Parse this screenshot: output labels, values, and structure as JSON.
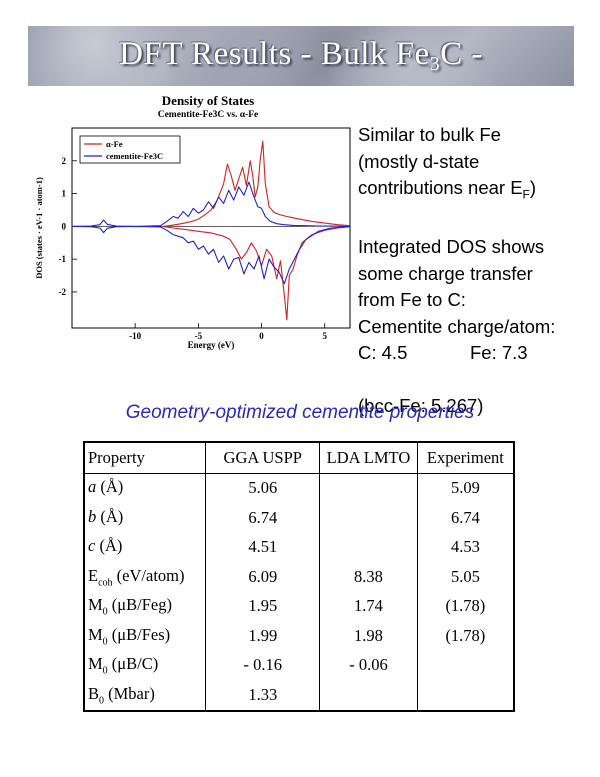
{
  "header": {
    "title_main": "DFT Results - Bulk Fe",
    "title_sub": "3",
    "title_tail": "C -"
  },
  "chart_data": {
    "type": "line",
    "title": "Density of States",
    "subtitle": "Cementite-Fe3C vs. α-Fe",
    "xlabel": "Energy (eV)",
    "ylabel": "DOS (states · eV-1 · atom-1)",
    "xlim": [
      -15,
      7
    ],
    "ylim": [
      -3.1,
      3.0
    ],
    "xticks": [
      -10,
      -5,
      0,
      5
    ],
    "yticks": [
      -2,
      -1,
      0,
      1,
      2
    ],
    "legend": "top-left",
    "colors": {
      "alpha_fe": "#d42020",
      "cementite": "#2222cc"
    },
    "series": [
      {
        "name": "α-Fe",
        "spin_up": {
          "x": [
            -7.8,
            -7.2,
            -6.5,
            -6.0,
            -5.5,
            -5.0,
            -4.5,
            -4.0,
            -3.5,
            -3.0,
            -2.7,
            -2.4,
            -2.1,
            -1.8,
            -1.5,
            -1.2,
            -0.9,
            -0.7,
            -0.5,
            -0.3,
            -0.1,
            0.1,
            0.3,
            0.6,
            1.0,
            1.5,
            2.0,
            2.5,
            3.0,
            4.0,
            5.0,
            6.0,
            7.0
          ],
          "y": [
            0.0,
            0.03,
            0.07,
            0.11,
            0.15,
            0.22,
            0.35,
            0.5,
            0.8,
            1.3,
            1.9,
            1.55,
            1.1,
            1.45,
            1.8,
            1.25,
            2.0,
            1.55,
            0.9,
            1.2,
            2.05,
            2.6,
            1.3,
            0.6,
            0.42,
            0.35,
            0.3,
            0.26,
            0.22,
            0.15,
            0.1,
            0.05,
            0.02
          ]
        },
        "spin_down": {
          "x": [
            -7.8,
            -7.0,
            -6.0,
            -5.0,
            -4.0,
            -3.0,
            -2.5,
            -2.0,
            -1.6,
            -1.2,
            -0.8,
            -0.4,
            0.0,
            0.4,
            0.8,
            1.2,
            1.5,
            1.8,
            2.0,
            2.2,
            2.5,
            2.8,
            3.2,
            4.0,
            5.0,
            6.0,
            7.0
          ],
          "y": [
            0.0,
            -0.05,
            -0.1,
            -0.15,
            -0.2,
            -0.3,
            -0.4,
            -0.7,
            -1.0,
            -0.8,
            -0.5,
            -0.75,
            -1.2,
            -0.7,
            -0.9,
            -1.6,
            -1.05,
            -2.1,
            -2.85,
            -1.5,
            -1.3,
            -0.9,
            -0.5,
            -0.25,
            -0.12,
            -0.05,
            -0.01
          ]
        }
      },
      {
        "name": "cementite-Fe3C",
        "spin_up": {
          "x": [
            -15,
            -13.5,
            -12.8,
            -12.5,
            -12.2,
            -11.5,
            -10,
            -8,
            -7.5,
            -7.0,
            -6.6,
            -6.2,
            -5.8,
            -5.4,
            -5.0,
            -4.6,
            -4.2,
            -3.8,
            -3.4,
            -3.0,
            -2.6,
            -2.2,
            -1.8,
            -1.4,
            -1.0,
            -0.6,
            -0.3,
            0.0,
            0.3,
            0.7,
            1.2,
            1.8,
            2.5,
            3.5,
            4.5,
            5.5,
            7.0
          ],
          "y": [
            0.0,
            0.01,
            0.05,
            0.19,
            0.06,
            0.01,
            0.0,
            0.02,
            0.15,
            0.3,
            0.25,
            0.45,
            0.3,
            0.55,
            0.4,
            0.5,
            0.75,
            0.55,
            0.9,
            0.7,
            1.1,
            0.8,
            1.2,
            0.95,
            1.35,
            0.9,
            0.6,
            0.55,
            0.3,
            0.15,
            0.08,
            0.05,
            0.03,
            0.02,
            0.01,
            0.01,
            0.0
          ]
        },
        "spin_down": {
          "x": [
            -15,
            -13.5,
            -12.8,
            -12.5,
            -12.2,
            -11.5,
            -10,
            -8,
            -7.5,
            -7.0,
            -6.6,
            -6.2,
            -5.8,
            -5.4,
            -5.0,
            -4.6,
            -4.2,
            -3.8,
            -3.4,
            -3.0,
            -2.6,
            -2.2,
            -1.8,
            -1.4,
            -1.0,
            -0.6,
            -0.2,
            0.2,
            0.6,
            1.0,
            1.4,
            1.8,
            2.2,
            2.6,
            3.0,
            3.5,
            4.5,
            5.5,
            7.0
          ],
          "y": [
            0.0,
            -0.01,
            -0.05,
            -0.19,
            -0.06,
            -0.01,
            0.0,
            -0.02,
            -0.12,
            -0.25,
            -0.3,
            -0.35,
            -0.5,
            -0.45,
            -0.7,
            -0.6,
            -0.85,
            -0.7,
            -1.1,
            -0.9,
            -1.3,
            -1.0,
            -0.95,
            -1.45,
            -1.1,
            -1.3,
            -0.9,
            -1.6,
            -1.0,
            -1.25,
            -1.4,
            -1.75,
            -1.3,
            -1.0,
            -0.7,
            -0.4,
            -0.15,
            -0.05,
            0.0
          ]
        }
      }
    ]
  },
  "side": {
    "line1": "Similar to bulk Fe",
    "line2": "(mostly d-state",
    "line3_main": "contributions near E",
    "line3_sub": "F",
    "line3_tail": ")",
    "line4": "Integrated DOS shows",
    "line5": "some charge transfer",
    "line6": "from Fe to C:",
    "line7": "Cementite charge/atom:",
    "c_label": "C: 4.5",
    "fe_label": "Fe: 7.3",
    "bcc": "(bcc-Fe: 5.267)"
  },
  "caption": "Geometry-optimized cementite properties",
  "table": {
    "headers": [
      "Property",
      "GGA USPP",
      "LDA LMTO",
      "Experiment"
    ],
    "rows": [
      {
        "p_main": "a",
        "p_sub": "",
        "p_tail": " (Å)",
        "italic": true,
        "v1": "5.06",
        "v2": "",
        "v3": "5.09"
      },
      {
        "p_main": "b",
        "p_sub": "",
        "p_tail": " (Å)",
        "italic": true,
        "v1": "6.74",
        "v2": "",
        "v3": "6.74"
      },
      {
        "p_main": "c",
        "p_sub": "",
        "p_tail": " (Å)",
        "italic": true,
        "v1": "4.51",
        "v2": "",
        "v3": "4.53"
      },
      {
        "p_main": "E",
        "p_sub": "coh",
        "p_tail": " (eV/atom)",
        "italic": false,
        "v1": "6.09",
        "v2": "8.38",
        "v3": "5.05"
      },
      {
        "p_main": "M",
        "p_sub": "0",
        "p_tail": " (μB/Feg)",
        "italic": false,
        "v1": "1.95",
        "v2": "1.74",
        "v3": "(1.78)"
      },
      {
        "p_main": "M",
        "p_sub": "0",
        "p_tail": " (μB/Fes)",
        "italic": false,
        "v1": "1.99",
        "v2": "1.98",
        "v3": "(1.78)"
      },
      {
        "p_main": "M",
        "p_sub": "0",
        "p_tail": " (μB/C)",
        "italic": false,
        "v1": "- 0.16",
        "v2": "- 0.06",
        "v3": ""
      },
      {
        "p_main": "B",
        "p_sub": "0",
        "p_tail": " (Mbar)",
        "italic": false,
        "v1": "1.33",
        "v2": "",
        "v3": ""
      }
    ]
  }
}
